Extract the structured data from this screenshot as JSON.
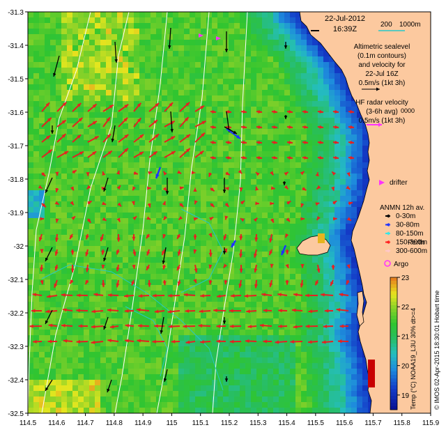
{
  "axes": {
    "x_ticks": [
      "114.5",
      "114.6",
      "114.7",
      "114.8",
      "114.9",
      "115",
      "115.1",
      "115.2",
      "115.3",
      "115.4",
      "115.5",
      "115.6",
      "115.7",
      "115.8",
      "115.9"
    ],
    "y_ticks": [
      "-31.3",
      "-31.4",
      "-31.5",
      "-31.6",
      "-31.7",
      "-31.8",
      "-31.9",
      "-32",
      "-32.1",
      "-32.2",
      "-32.3",
      "-32.4",
      "-32.5"
    ],
    "xlim": [
      114.5,
      115.9
    ],
    "ylim": [
      -32.5,
      -31.3
    ]
  },
  "date": "22-Jul-2012",
  "time": "16:39Z",
  "scale_label": "200",
  "scale_label2": "1000m",
  "altimetry_note": [
    "Altimetric sealevel",
    "(0.1m contours)",
    "and velocity for",
    "22-Jul 16Z",
    "0.5m/s (1kt 3h)"
  ],
  "hf_radar_note": [
    "HF radar velocity",
    "(3-6h avg)",
    "0.5m/s (1kt 3h)"
  ],
  "hf_radar_overlap": "0000",
  "drifter_label": "drifter",
  "anmn_title": "ANMN 12h av.",
  "anmn_items": [
    {
      "label": "0-30m",
      "color": "#000000"
    },
    {
      "label": "30-80m",
      "color": "#1e32ff"
    },
    {
      "label": "80-150m",
      "color": "#37e6e6"
    },
    {
      "label": "150-300m",
      "color": "#ff1e1e"
    },
    {
      "label": "300-600m",
      "color": "#ffc8c8"
    }
  ],
  "perth_label": "Perth",
  "argo_label": "Argo",
  "colorbar": {
    "ticks": [
      "19",
      "20",
      "21",
      "22",
      "23"
    ],
    "label": "Temp (°C) NOAA19_L3U 30% dt>=4"
  },
  "credit": "© IMOS 02-Apr-2015 18:30:01 Hobart time",
  "colors": {
    "land": "#fcc99f",
    "deep_blue": "#0a1496",
    "green": "#30c530",
    "yellow": "#e6e61e",
    "cyan": "#24c8c8",
    "hf_arrow": "#e62020",
    "drifter": "#ff32ff"
  }
}
